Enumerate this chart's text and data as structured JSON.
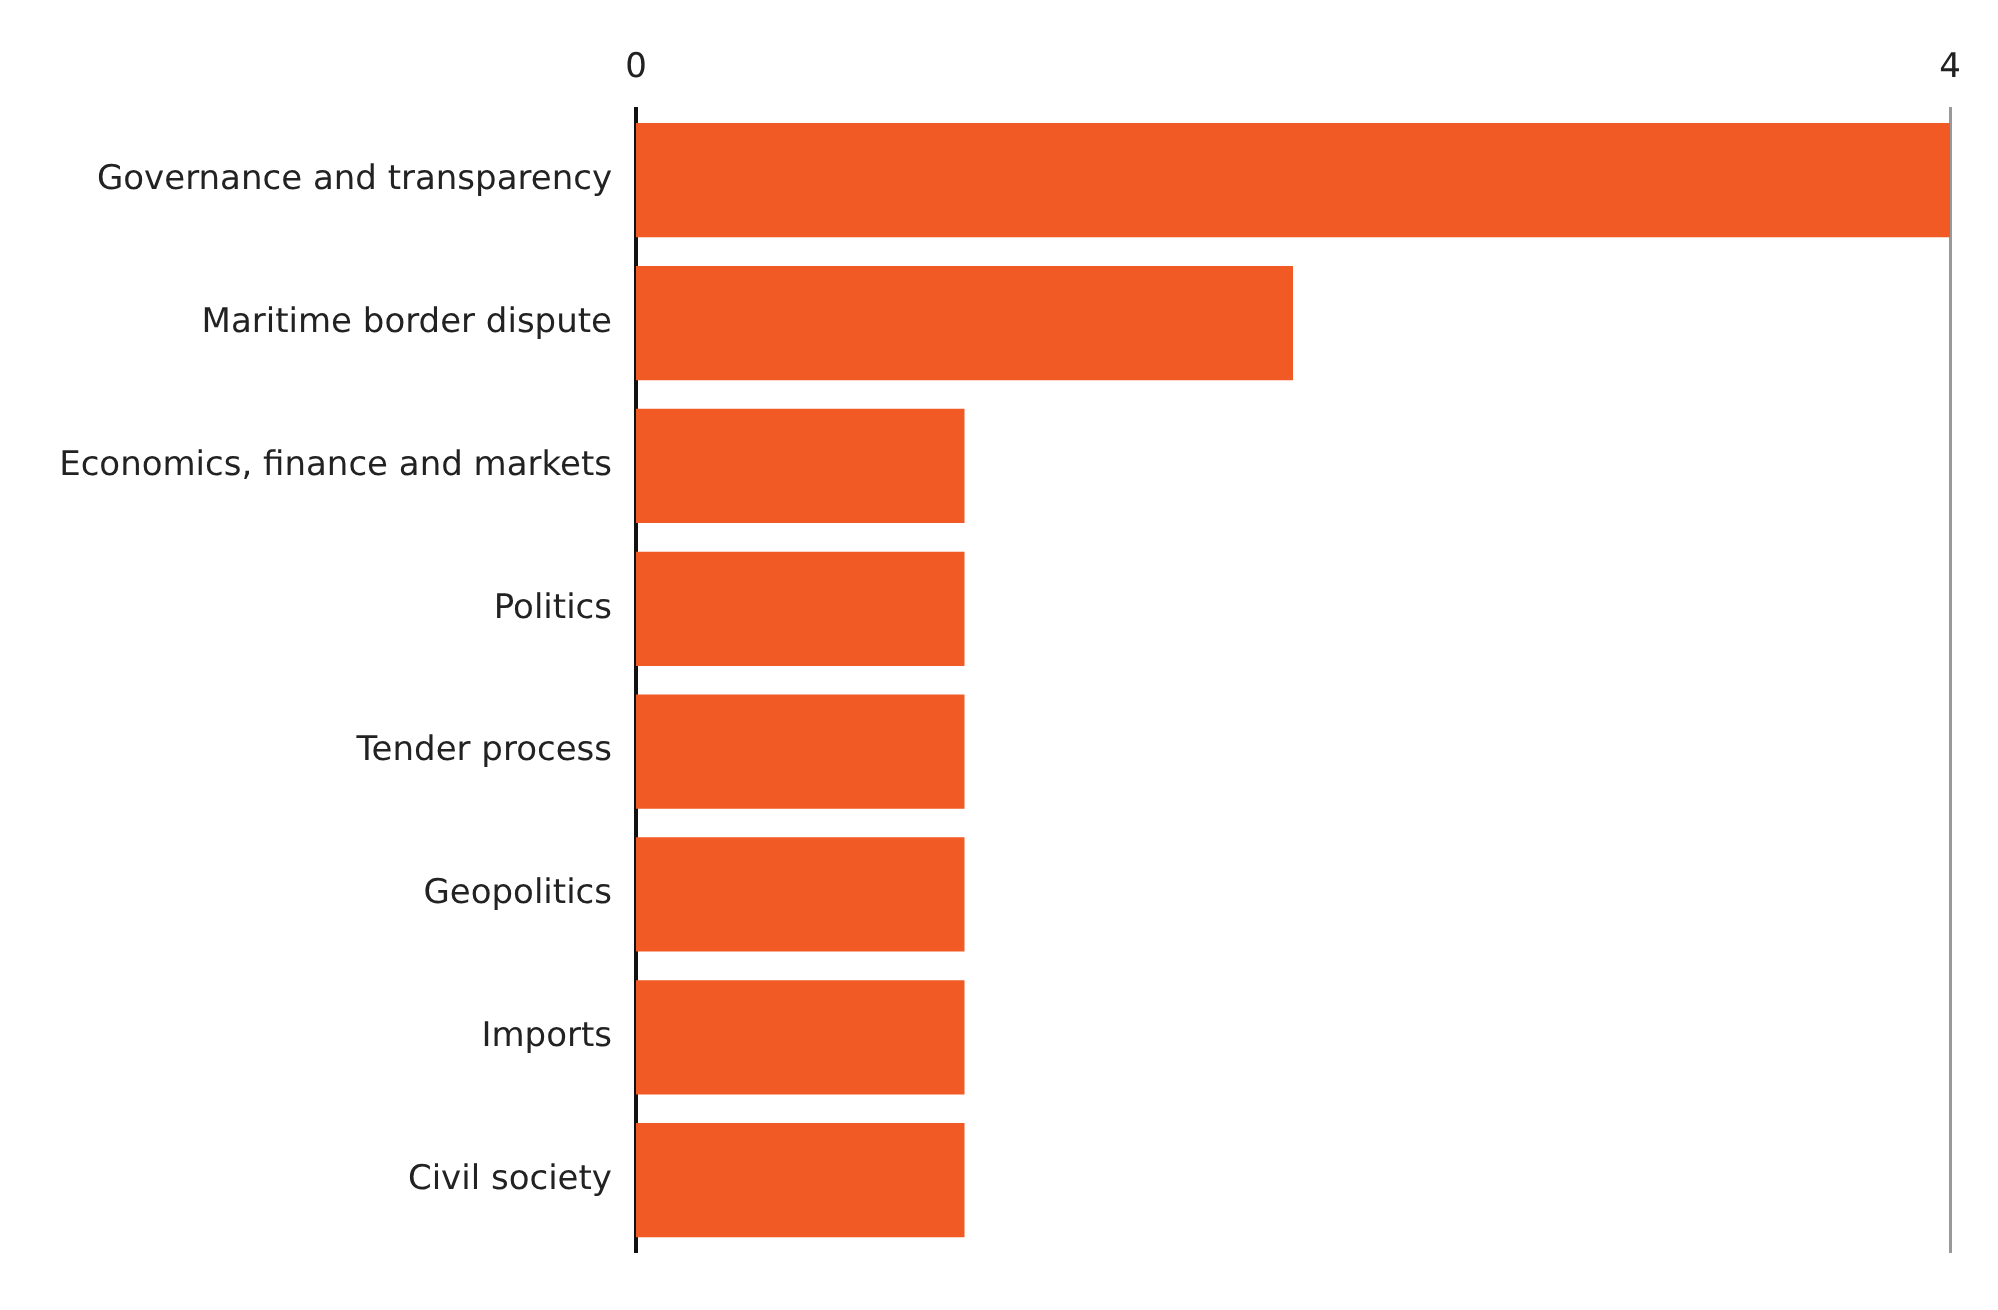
{
  "chart_data": {
    "type": "bar",
    "orientation": "horizontal",
    "categories": [
      "Governance and transparency",
      "Maritime border dispute",
      "Economics, finance and markets",
      "Politics",
      "Tender process",
      "Geopolitics",
      "Imports",
      "Civil society"
    ],
    "values": [
      4,
      2,
      1,
      1,
      1,
      1,
      1,
      1
    ],
    "color": "#f15a24",
    "xlim": [
      0,
      4
    ],
    "xticks": [
      0,
      4
    ],
    "legend": false
  }
}
